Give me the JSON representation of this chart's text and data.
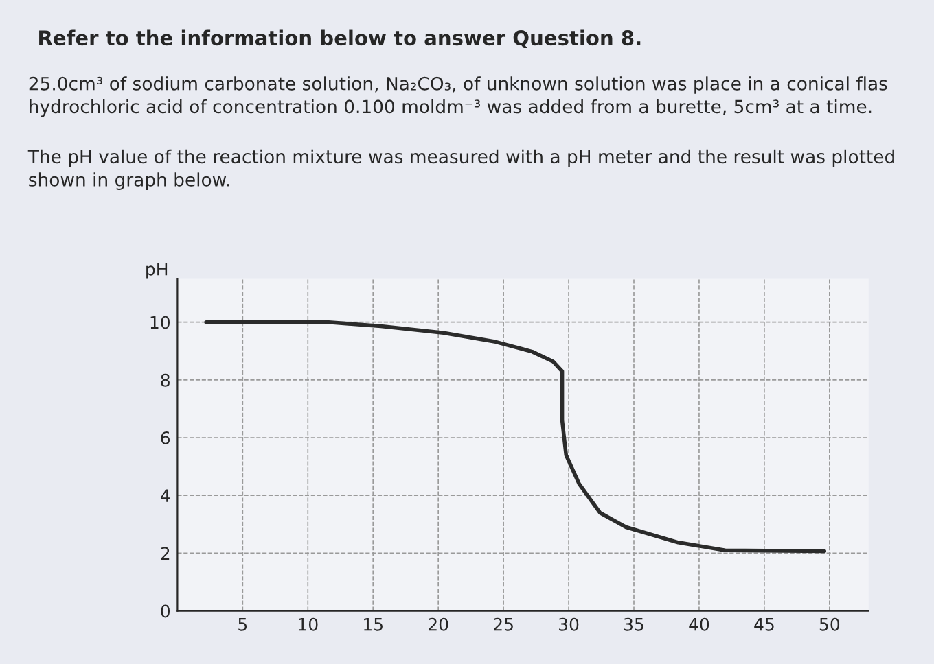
{
  "chart_data": {
    "type": "line",
    "title": "Refer to the information below to answer Question 8.",
    "annotations": [
      "25.0cm³ of sodium carbonate solution, Na₂CO₃, of unknown solution was place in a conical flas\nhydrochloric acid of concentration 0.100 moldm⁻³ was added from a burette, 5cm³ at a time.",
      "The pH value of the reaction mixture was measured with a pH meter and the result was plotted\nshown in graph below."
    ],
    "ylabel": "pH",
    "x": [
      2.2,
      11.6,
      15.6,
      20.4,
      24.4,
      27.2,
      28.8,
      29.5,
      29.5,
      29.8,
      30.8,
      32.4,
      34.4,
      38.4,
      42,
      49.6
    ],
    "series": [
      {
        "color": "#2b2b2b",
        "values": [
          10.0,
          10.0,
          9.86,
          9.63,
          9.32,
          8.98,
          8.64,
          8.3,
          6.6,
          5.4,
          4.4,
          3.4,
          2.9,
          2.37,
          2.1,
          2.07
        ]
      }
    ],
    "xlim": [
      0,
      53
    ],
    "xticks": [
      5,
      10,
      15,
      20,
      25,
      30,
      35,
      40,
      45,
      50
    ],
    "ylim": [
      0,
      11.5
    ],
    "yticks": [
      0,
      2,
      4,
      6,
      8,
      10
    ],
    "grid": true,
    "marker": "none",
    "line_style": "solid"
  }
}
